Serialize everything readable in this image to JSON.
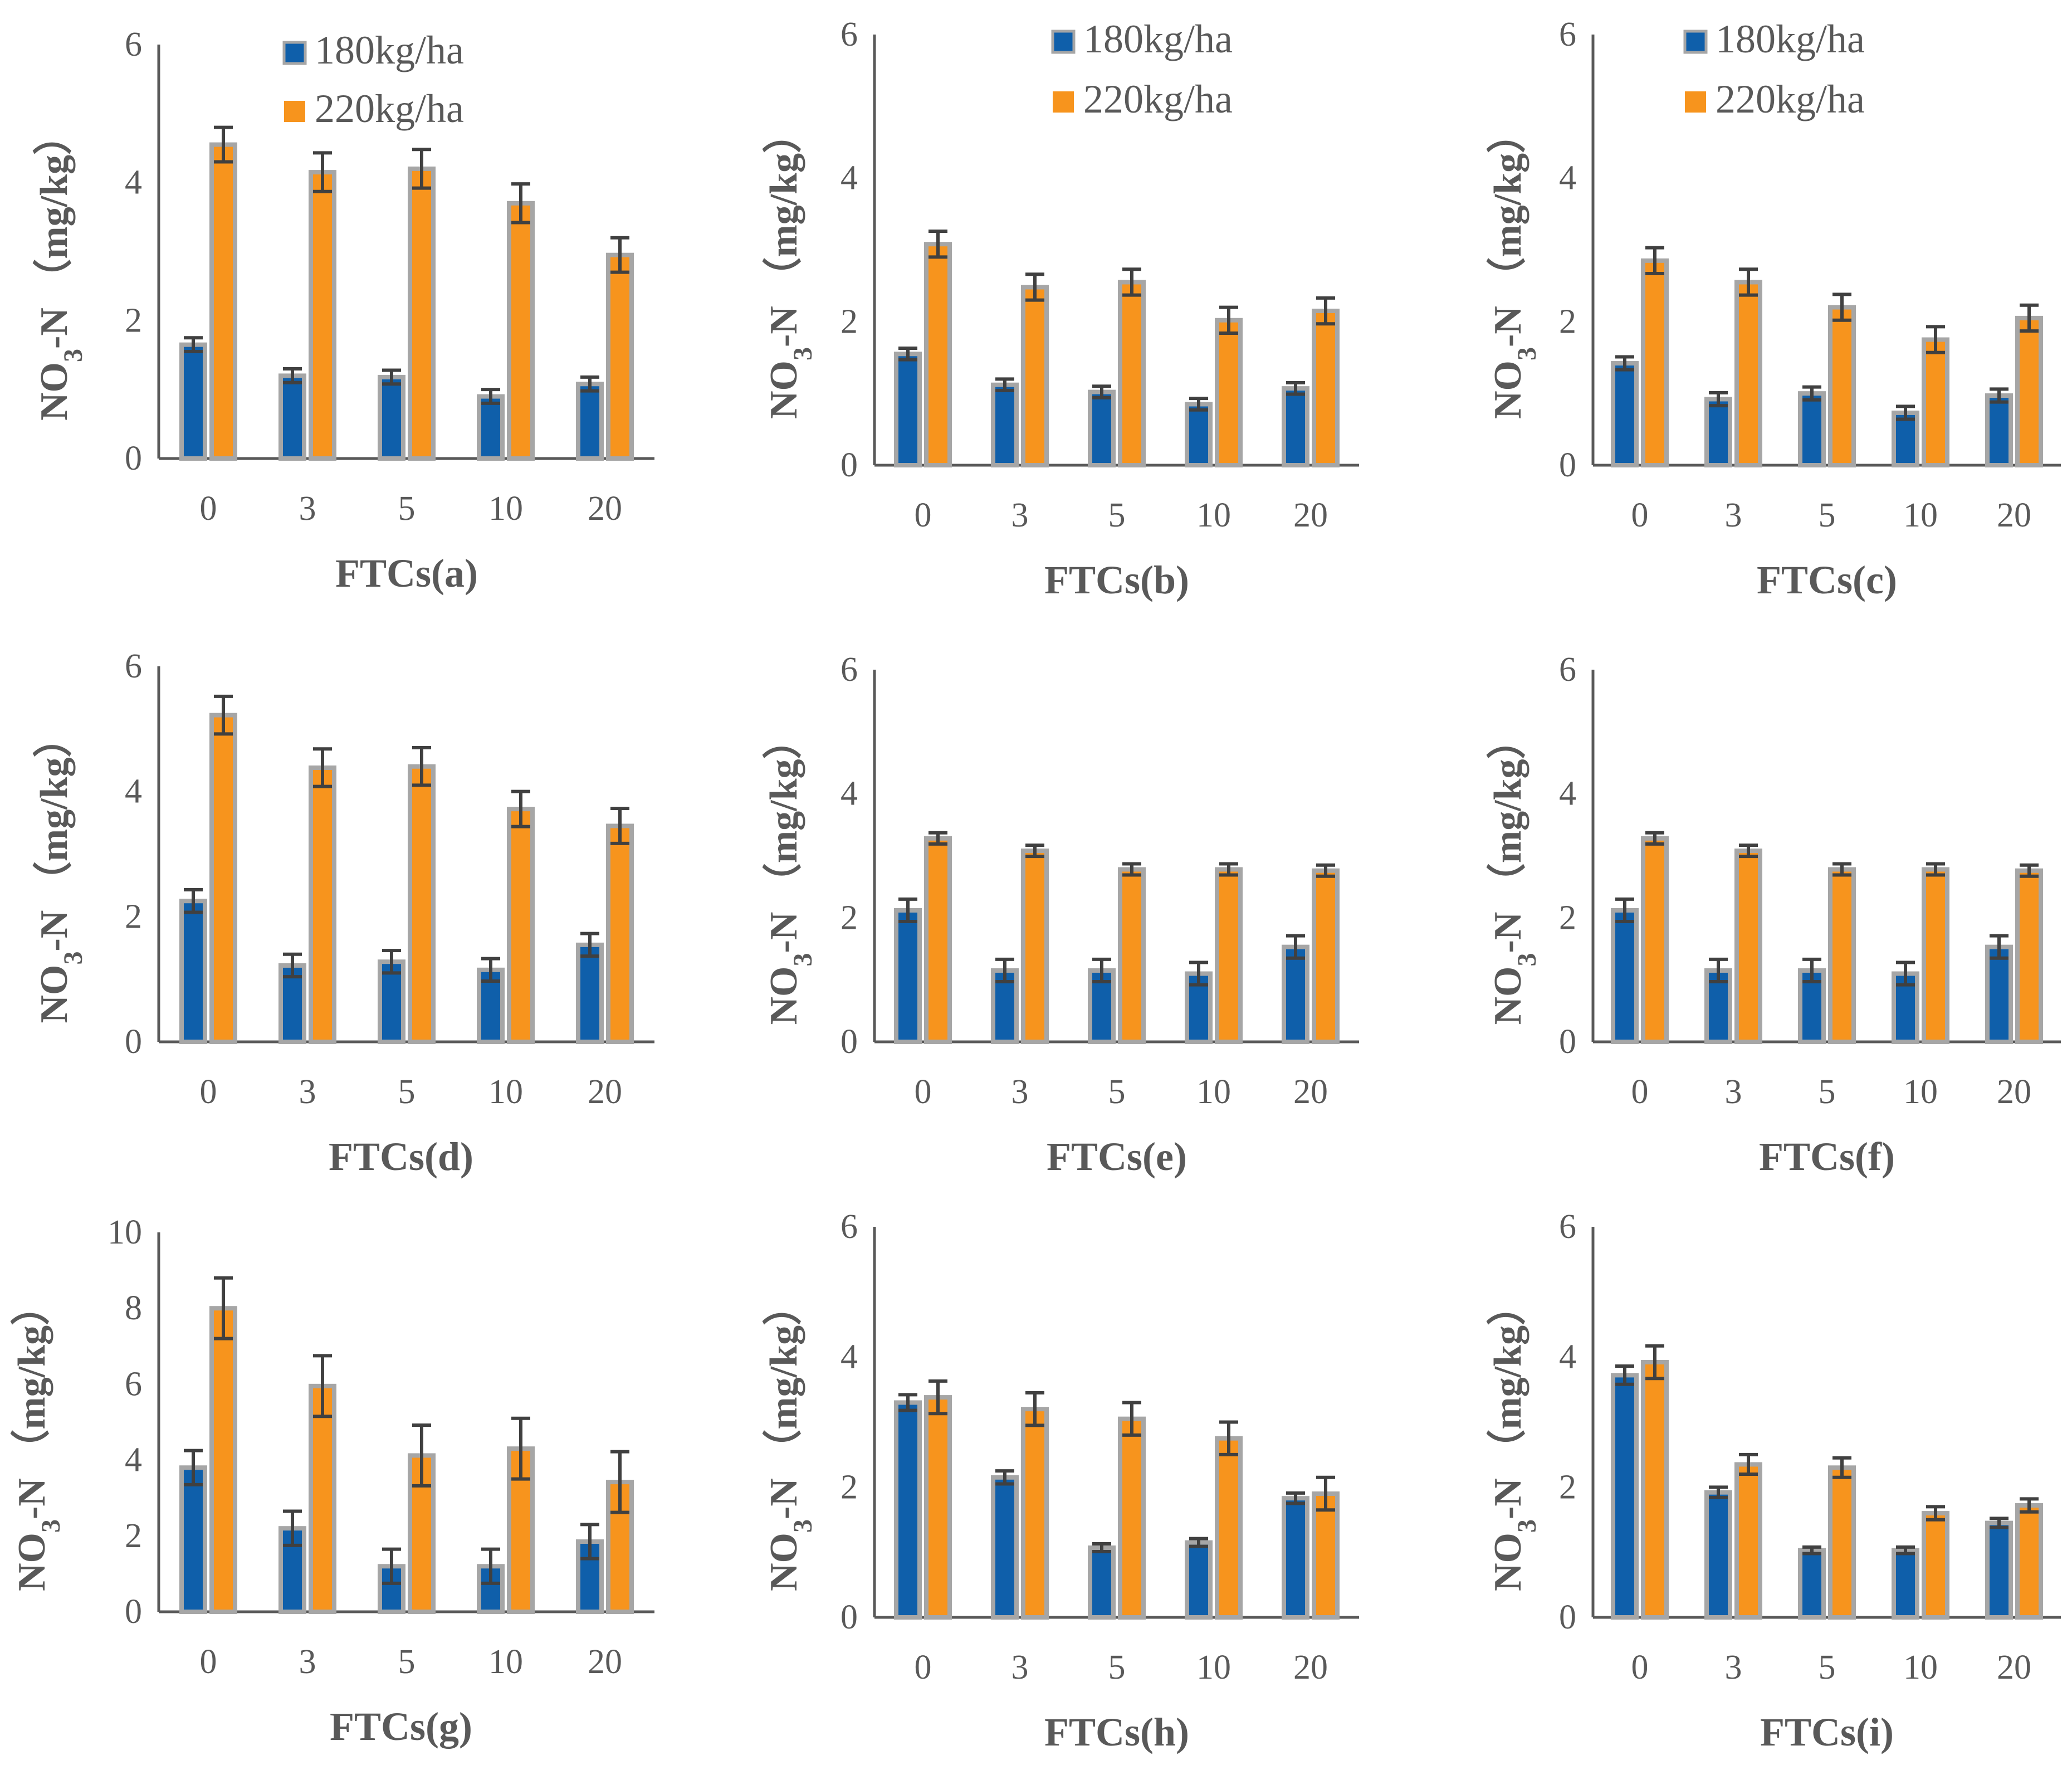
{
  "figure": {
    "caption": ""
  },
  "legend": {
    "series_labels": [
      "180kg/ha",
      "220kg/ha"
    ],
    "colors": [
      "#0F5FAA",
      "#F7941D"
    ],
    "bar_border_color": "#A6A6A6",
    "error_bar_color": "#404040",
    "axis_color": "#595959"
  },
  "chart_data": [
    {
      "type": "bar",
      "panel": "a",
      "title": "",
      "xlabel": "FTCs(a)",
      "ylabel": "NO3-N （mg/kg）",
      "ylabel_parts": [
        "NO",
        "3",
        "-N （mg/kg）"
      ],
      "categories": [
        "0",
        "3",
        "5",
        "10",
        "20"
      ],
      "yticks": [
        "0",
        "2",
        "4",
        "6"
      ],
      "ylim": [
        0,
        6
      ],
      "grid": false,
      "legend": "top",
      "series": [
        {
          "name": "180kg/ha",
          "values": [
            1.65,
            1.2,
            1.18,
            0.9,
            1.08
          ],
          "errors": [
            0.1,
            0.1,
            0.1,
            0.1,
            0.1
          ]
        },
        {
          "name": "220kg/ha",
          "values": [
            4.55,
            4.15,
            4.2,
            3.7,
            2.95
          ],
          "errors": [
            0.25,
            0.28,
            0.28,
            0.28,
            0.25
          ]
        }
      ]
    },
    {
      "type": "bar",
      "panel": "b",
      "title": "",
      "xlabel": "FTCs(b)",
      "ylabel": "NO3-N （mg/kg）",
      "ylabel_parts": [
        "NO",
        "3",
        "-N （mg/kg）"
      ],
      "categories": [
        "0",
        "3",
        "5",
        "10",
        "20"
      ],
      "yticks": [
        "0",
        "2",
        "4",
        "6"
      ],
      "ylim": [
        0,
        6
      ],
      "grid": false,
      "legend": "top",
      "series": [
        {
          "name": "180kg/ha",
          "values": [
            1.55,
            1.12,
            1.02,
            0.85,
            1.07
          ],
          "errors": [
            0.08,
            0.08,
            0.08,
            0.08,
            0.08
          ]
        },
        {
          "name": "220kg/ha",
          "values": [
            3.08,
            2.48,
            2.55,
            2.02,
            2.15
          ],
          "errors": [
            0.18,
            0.18,
            0.18,
            0.18,
            0.18
          ]
        }
      ]
    },
    {
      "type": "bar",
      "panel": "c",
      "title": "",
      "xlabel": "FTCs(c)",
      "ylabel": "NO3-N （mg/kg）",
      "ylabel_parts": [
        "NO",
        "3",
        "-N （mg/kg）"
      ],
      "categories": [
        "0",
        "3",
        "5",
        "10",
        "20"
      ],
      "yticks": [
        "0",
        "2",
        "4",
        "6"
      ],
      "ylim": [
        0,
        6
      ],
      "grid": false,
      "legend": "top",
      "series": [
        {
          "name": "180kg/ha",
          "values": [
            1.42,
            0.92,
            1.0,
            0.73,
            0.97
          ],
          "errors": [
            0.09,
            0.09,
            0.09,
            0.09,
            0.09
          ]
        },
        {
          "name": "220kg/ha",
          "values": [
            2.85,
            2.55,
            2.2,
            1.75,
            2.05
          ],
          "errors": [
            0.18,
            0.18,
            0.18,
            0.18,
            0.18
          ]
        }
      ]
    },
    {
      "type": "bar",
      "panel": "d",
      "title": "",
      "xlabel": "FTCs(d)",
      "ylabel": "NO3-N （mg/kg）",
      "ylabel_parts": [
        "NO",
        "3",
        "-N （mg/kg）"
      ],
      "categories": [
        "0",
        "3",
        "5",
        "10",
        "20"
      ],
      "yticks": [
        "0",
        "2",
        "4",
        "6"
      ],
      "ylim": [
        0,
        6
      ],
      "grid": false,
      "legend": "none",
      "series": [
        {
          "name": "180kg/ha",
          "values": [
            2.25,
            1.22,
            1.28,
            1.15,
            1.55
          ],
          "errors": [
            0.18,
            0.18,
            0.18,
            0.18,
            0.18
          ]
        },
        {
          "name": "220kg/ha",
          "values": [
            5.22,
            4.38,
            4.4,
            3.72,
            3.45
          ],
          "errors": [
            0.3,
            0.3,
            0.3,
            0.28,
            0.28
          ]
        }
      ]
    },
    {
      "type": "bar",
      "panel": "e",
      "title": "",
      "xlabel": "FTCs(e)",
      "ylabel": "NO3-N （mg/kg）",
      "ylabel_parts": [
        "NO",
        "3",
        "-N （mg/kg）"
      ],
      "categories": [
        "0",
        "3",
        "5",
        "10",
        "20"
      ],
      "yticks": [
        "0",
        "2",
        "4",
        "6"
      ],
      "ylim": [
        0,
        6
      ],
      "grid": false,
      "legend": "none",
      "series": [
        {
          "name": "180kg/ha",
          "values": [
            2.12,
            1.15,
            1.15,
            1.1,
            1.53
          ],
          "errors": [
            0.18,
            0.18,
            0.18,
            0.18,
            0.18
          ]
        },
        {
          "name": "220kg/ha",
          "values": [
            3.28,
            3.08,
            2.78,
            2.78,
            2.76
          ],
          "errors": [
            0.09,
            0.09,
            0.09,
            0.09,
            0.09
          ]
        }
      ]
    },
    {
      "type": "bar",
      "panel": "f",
      "title": "",
      "xlabel": "FTCs(f)",
      "ylabel": "NO3-N （mg/kg）",
      "ylabel_parts": [
        "NO",
        "3",
        "-N （mg/kg）"
      ],
      "categories": [
        "0",
        "3",
        "5",
        "10",
        "20"
      ],
      "yticks": [
        "0",
        "2",
        "4",
        "6"
      ],
      "ylim": [
        0,
        6
      ],
      "grid": false,
      "legend": "none",
      "series": [
        {
          "name": "180kg/ha",
          "values": [
            2.12,
            1.15,
            1.15,
            1.1,
            1.53
          ],
          "errors": [
            0.18,
            0.18,
            0.18,
            0.18,
            0.18
          ]
        },
        {
          "name": "220kg/ha",
          "values": [
            3.28,
            3.08,
            2.78,
            2.78,
            2.76
          ],
          "errors": [
            0.09,
            0.09,
            0.09,
            0.09,
            0.09
          ]
        }
      ]
    },
    {
      "type": "bar",
      "panel": "g",
      "title": "",
      "xlabel": "FTCs(g)",
      "ylabel": "NO3-N （mg/kg）",
      "ylabel_parts": [
        "NO",
        "3",
        "-N （mg/kg）"
      ],
      "categories": [
        "0",
        "3",
        "5",
        "10",
        "20"
      ],
      "yticks": [
        "0",
        "2",
        "4",
        "6",
        "8",
        "10"
      ],
      "ylim": [
        0,
        10
      ],
      "grid": false,
      "legend": "none",
      "series": [
        {
          "name": "180kg/ha",
          "values": [
            3.8,
            2.2,
            1.2,
            1.2,
            1.85
          ],
          "errors": [
            0.45,
            0.45,
            0.45,
            0.45,
            0.45
          ]
        },
        {
          "name": "220kg/ha",
          "values": [
            8.0,
            5.95,
            4.12,
            4.3,
            3.42
          ],
          "errors": [
            0.8,
            0.8,
            0.8,
            0.8,
            0.8
          ]
        }
      ]
    },
    {
      "type": "bar",
      "panel": "h",
      "title": "",
      "xlabel": "FTCs(h)",
      "ylabel": "NO3-N （mg/kg）",
      "ylabel_parts": [
        "NO",
        "3",
        "-N （mg/kg）"
      ],
      "categories": [
        "0",
        "3",
        "5",
        "10",
        "20"
      ],
      "yticks": [
        "0",
        "2",
        "4",
        "6"
      ],
      "ylim": [
        0,
        6
      ],
      "grid": false,
      "legend": "none",
      "series": [
        {
          "name": "180kg/ha",
          "values": [
            3.3,
            2.15,
            1.07,
            1.15,
            1.83
          ],
          "errors": [
            0.12,
            0.1,
            0.06,
            0.06,
            0.08
          ]
        },
        {
          "name": "220kg/ha",
          "values": [
            3.38,
            3.2,
            3.05,
            2.75,
            1.9
          ],
          "errors": [
            0.25,
            0.25,
            0.25,
            0.25,
            0.25
          ]
        }
      ]
    },
    {
      "type": "bar",
      "panel": "i",
      "title": "",
      "xlabel": "FTCs(i)",
      "ylabel": "NO3-N （mg/kg）",
      "ylabel_parts": [
        "NO",
        "3",
        "-N （mg/kg）"
      ],
      "categories": [
        "0",
        "3",
        "5",
        "10",
        "20"
      ],
      "yticks": [
        "0",
        "2",
        "4",
        "6"
      ],
      "ylim": [
        0,
        6
      ],
      "grid": false,
      "legend": "none",
      "series": [
        {
          "name": "180kg/ha",
          "values": [
            3.72,
            1.92,
            1.03,
            1.03,
            1.45
          ],
          "errors": [
            0.14,
            0.08,
            0.05,
            0.05,
            0.07
          ]
        },
        {
          "name": "220kg/ha",
          "values": [
            3.92,
            2.35,
            2.3,
            1.6,
            1.72
          ],
          "errors": [
            0.25,
            0.15,
            0.15,
            0.1,
            0.1
          ]
        }
      ]
    }
  ]
}
